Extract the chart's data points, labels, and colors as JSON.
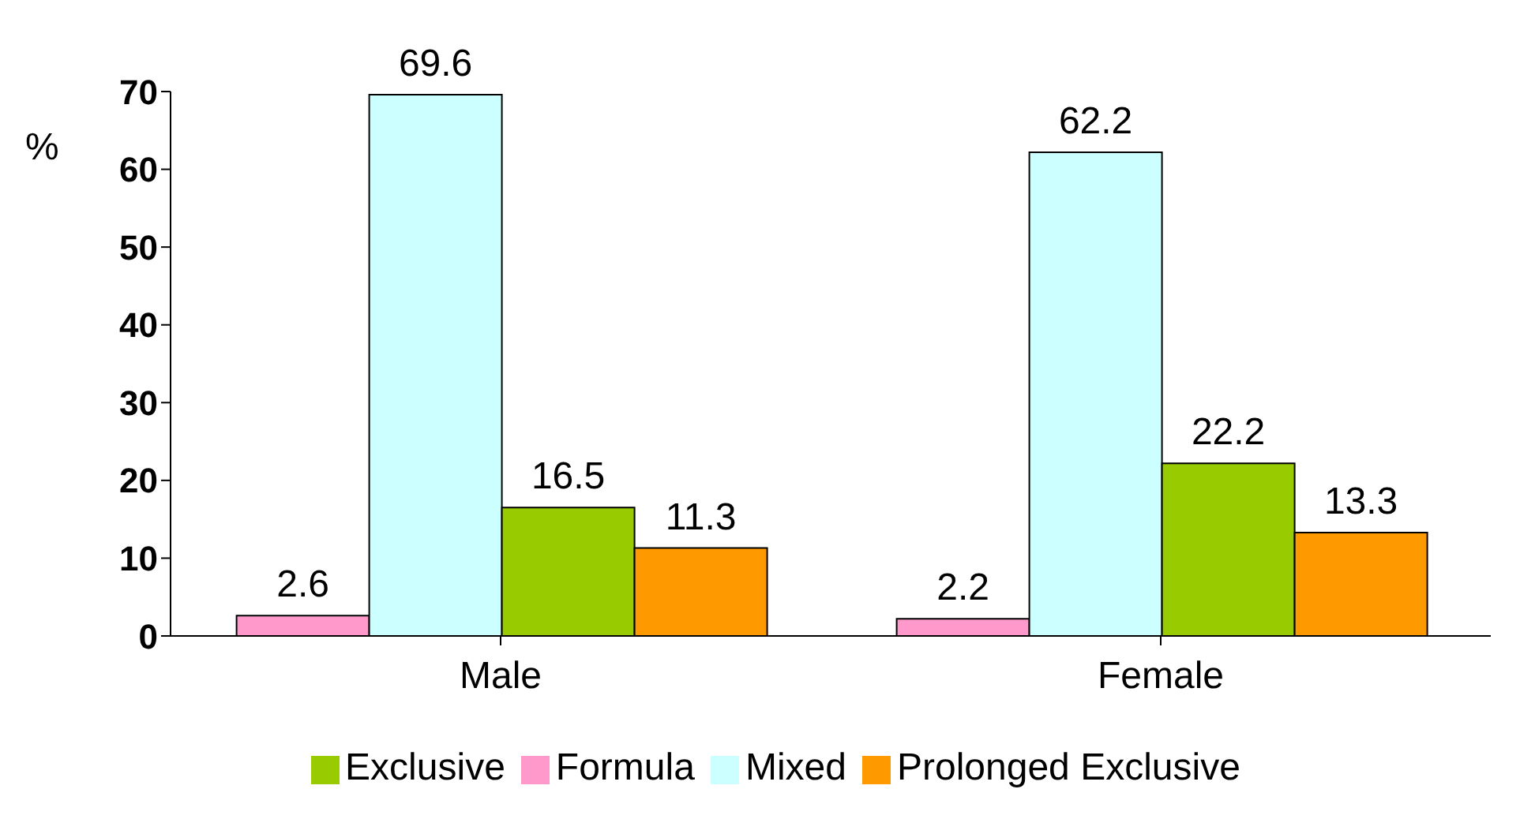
{
  "chart_data": {
    "type": "bar",
    "ylabel": "%",
    "categories": [
      "Male",
      "Female"
    ],
    "series": [
      {
        "name": "Formula",
        "color": "#ff99cc",
        "values": [
          2.6,
          2.2
        ]
      },
      {
        "name": "Mixed",
        "color": "#ccffff",
        "values": [
          69.6,
          62.2
        ]
      },
      {
        "name": "Exclusive",
        "color": "#99cc00",
        "values": [
          16.5,
          22.2
        ]
      },
      {
        "name": "Prolonged Exclusive",
        "color": "#ff9900",
        "values": [
          11.3,
          13.3
        ]
      }
    ],
    "ylim": [
      0,
      70
    ],
    "yticks": [
      0,
      10,
      20,
      30,
      40,
      50,
      60,
      70
    ],
    "data_labels": true,
    "legend": "bottom",
    "grid": false
  }
}
